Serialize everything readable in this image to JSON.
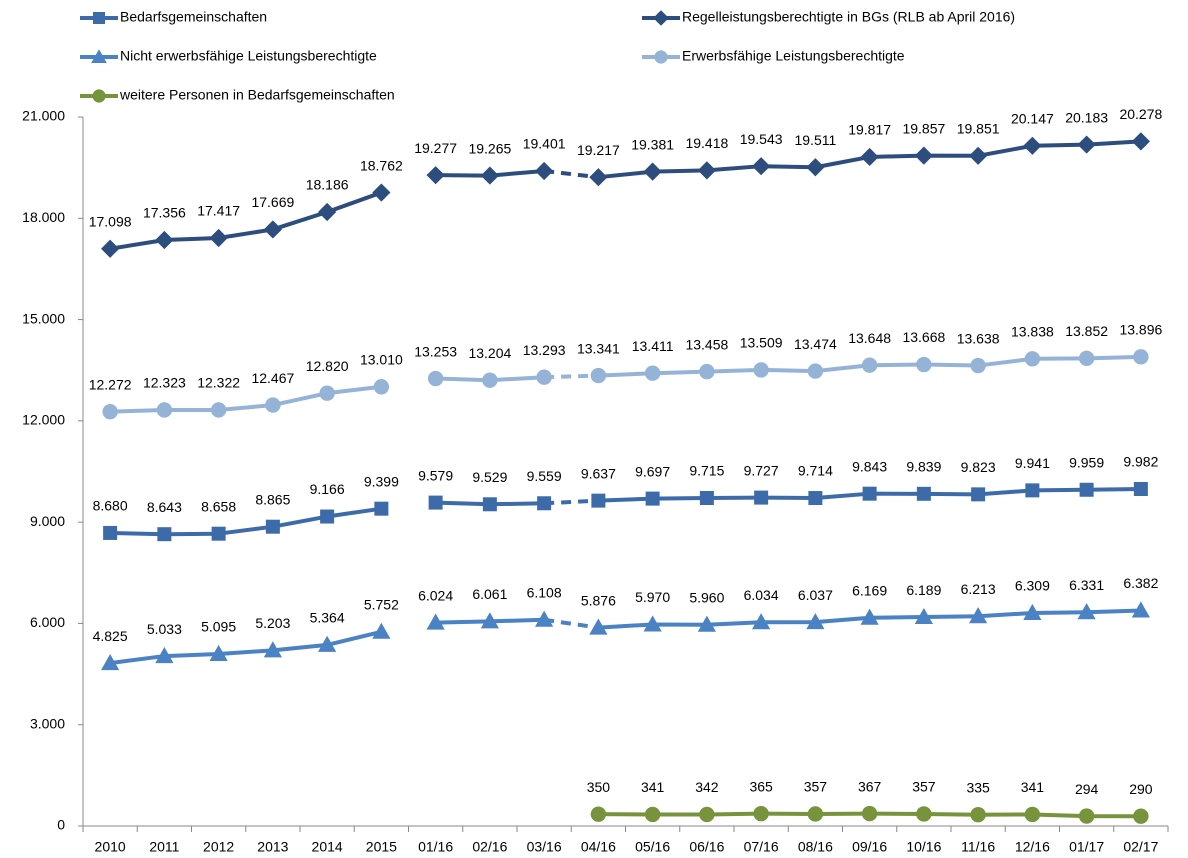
{
  "chart_data": {
    "type": "line",
    "categories": [
      "2010",
      "2011",
      "2012",
      "2013",
      "2014",
      "2015",
      "01/16",
      "02/16",
      "03/16",
      "04/16",
      "05/16",
      "06/16",
      "07/16",
      "08/16",
      "09/16",
      "10/16",
      "11/16",
      "12/16",
      "01/17",
      "02/17"
    ],
    "ylim": [
      0,
      21000
    ],
    "yticks": [
      0,
      {
        "value": 3000,
        "label": "3.000"
      },
      {
        "value": 6000,
        "label": "6.000"
      },
      {
        "value": 9000,
        "label": "9.000"
      },
      {
        "value": 12000,
        "label": "12.000"
      },
      {
        "value": 15000,
        "label": "15.000"
      },
      {
        "value": 18000,
        "label": "18.000"
      },
      {
        "value": 21000,
        "label": "21.000"
      }
    ],
    "grid": false,
    "legend": "top",
    "series": [
      {
        "name": "Bedarfsgemeinschaften",
        "color": "#3d6baa",
        "marker": "square",
        "values": [
          8680,
          8643,
          8658,
          8865,
          9166,
          9399,
          9579,
          9529,
          9559,
          9637,
          9697,
          9715,
          9727,
          9714,
          9843,
          9839,
          9823,
          9941,
          9959,
          9982
        ],
        "value_labels": [
          "8.680",
          "8.643",
          "8.658",
          "8.865",
          "9.166",
          "9.399",
          "9.579",
          "9.529",
          "9.559",
          "9.637",
          "9.697",
          "9.715",
          "9.727",
          "9.714",
          "9.843",
          "9.839",
          "9.823",
          "9.941",
          "9.959",
          "9.982"
        ]
      },
      {
        "name": "Regelleistungsberechtigte in BGs (RLB ab April 2016)",
        "color": "#2c4d7e",
        "marker": "diamond",
        "values": [
          17098,
          17356,
          17417,
          17669,
          18186,
          18762,
          19277,
          19265,
          19401,
          19217,
          19381,
          19418,
          19543,
          19511,
          19817,
          19857,
          19851,
          20147,
          20183,
          20278
        ],
        "value_labels": [
          "17.098",
          "17.356",
          "17.417",
          "17.669",
          "18.186",
          "18.762",
          "19.277",
          "19.265",
          "19.401",
          "19.217",
          "19.381",
          "19.418",
          "19.543",
          "19.511",
          "19.817",
          "19.857",
          "19.851",
          "20.147",
          "20.183",
          "20.278"
        ]
      },
      {
        "name": "Nicht erwerbsfähige Leistungsberechtigte",
        "color": "#4a82c4",
        "marker": "triangle",
        "values": [
          4825,
          5033,
          5095,
          5203,
          5364,
          5752,
          6024,
          6061,
          6108,
          5876,
          5970,
          5960,
          6034,
          6037,
          6169,
          6189,
          6213,
          6309,
          6331,
          6382
        ],
        "value_labels": [
          "4.825",
          "5.033",
          "5.095",
          "5.203",
          "5.364",
          "5.752",
          "6.024",
          "6.061",
          "6.108",
          "5.876",
          "5.970",
          "5.960",
          "6.034",
          "6.037",
          "6.169",
          "6.189",
          "6.213",
          "6.309",
          "6.331",
          "6.382"
        ]
      },
      {
        "name": "Erwerbsfähige Leistungsberechtigte",
        "color": "#95b3d7",
        "marker": "circle",
        "values": [
          12272,
          12323,
          12322,
          12467,
          12820,
          13010,
          13253,
          13204,
          13293,
          13341,
          13411,
          13458,
          13509,
          13474,
          13648,
          13668,
          13638,
          13838,
          13852,
          13896
        ],
        "value_labels": [
          "12.272",
          "12.323",
          "12.322",
          "12.467",
          "12.820",
          "13.010",
          "13.253",
          "13.204",
          "13.293",
          "13.341",
          "13.411",
          "13.458",
          "13.509",
          "13.474",
          "13.648",
          "13.668",
          "13.638",
          "13.838",
          "13.852",
          "13.896"
        ]
      },
      {
        "name": "weitere Personen in Bedarfsgemeinschaften",
        "color": "#77933c",
        "marker": "circle",
        "values": [
          null,
          null,
          null,
          null,
          null,
          null,
          null,
          null,
          null,
          350,
          341,
          342,
          365,
          357,
          367,
          357,
          335,
          341,
          294,
          290
        ]
      }
    ]
  }
}
